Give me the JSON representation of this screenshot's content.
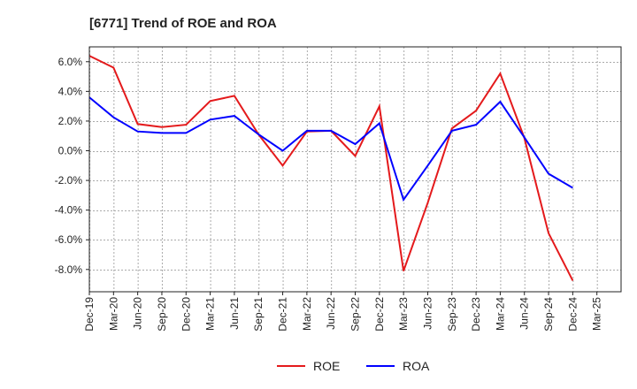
{
  "chart_data": {
    "type": "line",
    "title": "[6771]  Trend of ROE and ROA",
    "xlabel": "",
    "ylabel": "",
    "x": [
      "Dec-19",
      "Mar-20",
      "Jun-20",
      "Sep-20",
      "Dec-20",
      "Mar-21",
      "Jun-21",
      "Sep-21",
      "Dec-21",
      "Mar-22",
      "Jun-22",
      "Sep-22",
      "Dec-22",
      "Mar-23",
      "Jun-23",
      "Sep-23",
      "Dec-23",
      "Mar-24",
      "Jun-24",
      "Sep-24",
      "Dec-24",
      "Mar-25"
    ],
    "yticks": [
      -8.0,
      -6.0,
      -4.0,
      -2.0,
      0.0,
      2.0,
      4.0,
      6.0
    ],
    "ytick_labels": [
      "-8.0%",
      "-6.0%",
      "-4.0%",
      "-2.0%",
      "0.0%",
      "2.0%",
      "4.0%",
      "6.0%"
    ],
    "ylim": [
      -9.5,
      7.0
    ],
    "grid": true,
    "legend_position": "bottom-center",
    "series": [
      {
        "name": "ROE",
        "color": "#e41a1c",
        "values": [
          6.4,
          5.6,
          1.8,
          1.6,
          1.75,
          3.35,
          3.7,
          1.1,
          -1.0,
          1.3,
          1.35,
          -0.35,
          3.0,
          -8.1,
          -3.5,
          1.5,
          2.7,
          5.2,
          0.85,
          -5.55,
          -8.75,
          null
        ]
      },
      {
        "name": "ROA",
        "color": "#0000ff",
        "values": [
          3.6,
          2.25,
          1.3,
          1.2,
          1.2,
          2.1,
          2.35,
          1.1,
          0.0,
          1.35,
          1.35,
          0.45,
          1.85,
          -3.3,
          -1.0,
          1.35,
          1.75,
          3.3,
          0.9,
          -1.55,
          -2.5,
          null
        ]
      }
    ]
  }
}
